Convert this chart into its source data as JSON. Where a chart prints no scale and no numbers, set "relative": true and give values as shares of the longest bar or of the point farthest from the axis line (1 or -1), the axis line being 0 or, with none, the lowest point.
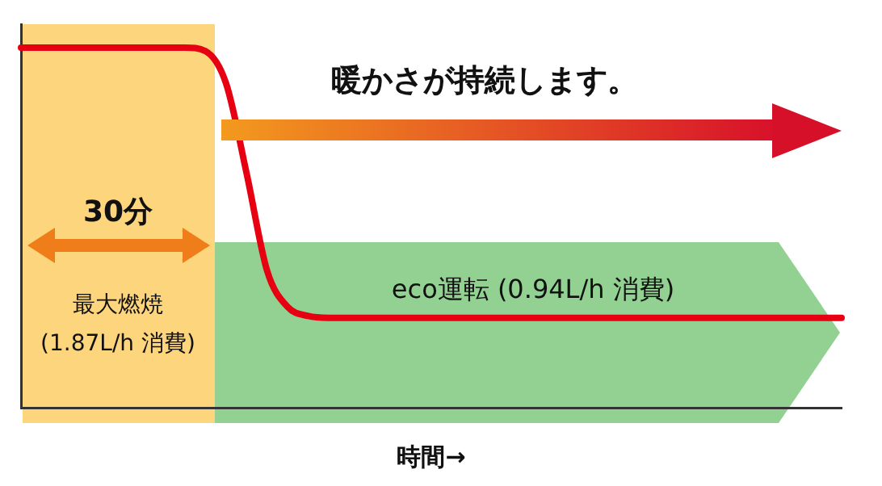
{
  "chart_data": {
    "type": "line",
    "relative": true,
    "xlabel": "時間→",
    "categories": [
      null,
      null,
      null,
      null,
      null,
      null,
      null,
      null,
      null,
      null,
      null,
      null,
      null,
      null,
      null,
      null,
      null,
      null,
      null,
      null,
      null,
      null,
      null,
      null,
      null,
      null,
      null,
      null,
      null,
      null,
      null,
      null,
      null,
      null,
      null,
      null,
      null,
      null,
      null,
      null,
      null
    ],
    "series": [
      {
        "color": "#e60012",
        "values": [
          1,
          1,
          1,
          1,
          1,
          1,
          1,
          1,
          1,
          0.99,
          0.9,
          0.65,
          0.38,
          0.28,
          0.255,
          0.25,
          0.25,
          0.25,
          0.25,
          0.25,
          0.25,
          0.25,
          0.25,
          0.25,
          0.25,
          0.25,
          0.25,
          0.25,
          0.25,
          0.25,
          0.25,
          0.25,
          0.25,
          0.25,
          0.25,
          0.25,
          0.25,
          0.25,
          0.25,
          0.25,
          0.25
        ]
      }
    ],
    "annotations": [
      "暖かさが持続します。",
      "30分",
      "最大燃焼\n(1.87L/h 消費)",
      "eco運転 (0.94L/h 消費)"
    ],
    "grid": false,
    "legend": false,
    "marker": "none",
    "line_style": "solid"
  }
}
